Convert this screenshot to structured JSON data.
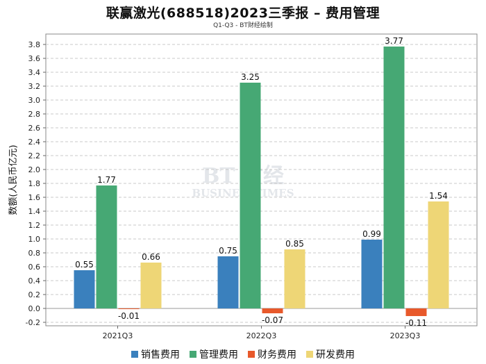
{
  "title": "联赢激光(688518)2023三季报 – 费用管理",
  "subtitle": "Q1-Q3 - BT财经绘制",
  "watermark": {
    "main": "BT 财经",
    "sub": "BUSINESSTIMES"
  },
  "chart_data": {
    "type": "bar",
    "categories": [
      "2021Q3",
      "2022Q3",
      "2023Q3"
    ],
    "ylabel": "数额(人民币亿元)",
    "ylim": [
      -0.25,
      3.95
    ],
    "yticks": [
      "-0.2",
      "0.0",
      "0.2",
      "0.4",
      "0.6",
      "0.8",
      "1.0",
      "1.2",
      "1.4",
      "1.6",
      "1.8",
      "2.0",
      "2.2",
      "2.4",
      "2.6",
      "2.8",
      "3.0",
      "3.2",
      "3.4",
      "3.6",
      "3.8"
    ],
    "grid": true,
    "legend_position": "bottom",
    "series": [
      {
        "name": "销售费用",
        "color": "#3a80bd",
        "values": [
          0.55,
          0.75,
          0.99
        ],
        "labels": [
          "0.55",
          "0.75",
          "0.99"
        ]
      },
      {
        "name": "管理费用",
        "color": "#46a874",
        "values": [
          1.77,
          3.25,
          3.77
        ],
        "labels": [
          "1.77",
          "3.25",
          "3.77"
        ]
      },
      {
        "name": "财务费用",
        "color": "#e8592b",
        "values": [
          -0.01,
          -0.07,
          -0.11
        ],
        "labels": [
          "-0.01",
          "-0.07",
          "-0.11"
        ]
      },
      {
        "name": "研发费用",
        "color": "#eed676",
        "values": [
          0.66,
          0.85,
          1.54
        ],
        "labels": [
          "0.66",
          "0.85",
          "1.54"
        ]
      }
    ]
  }
}
